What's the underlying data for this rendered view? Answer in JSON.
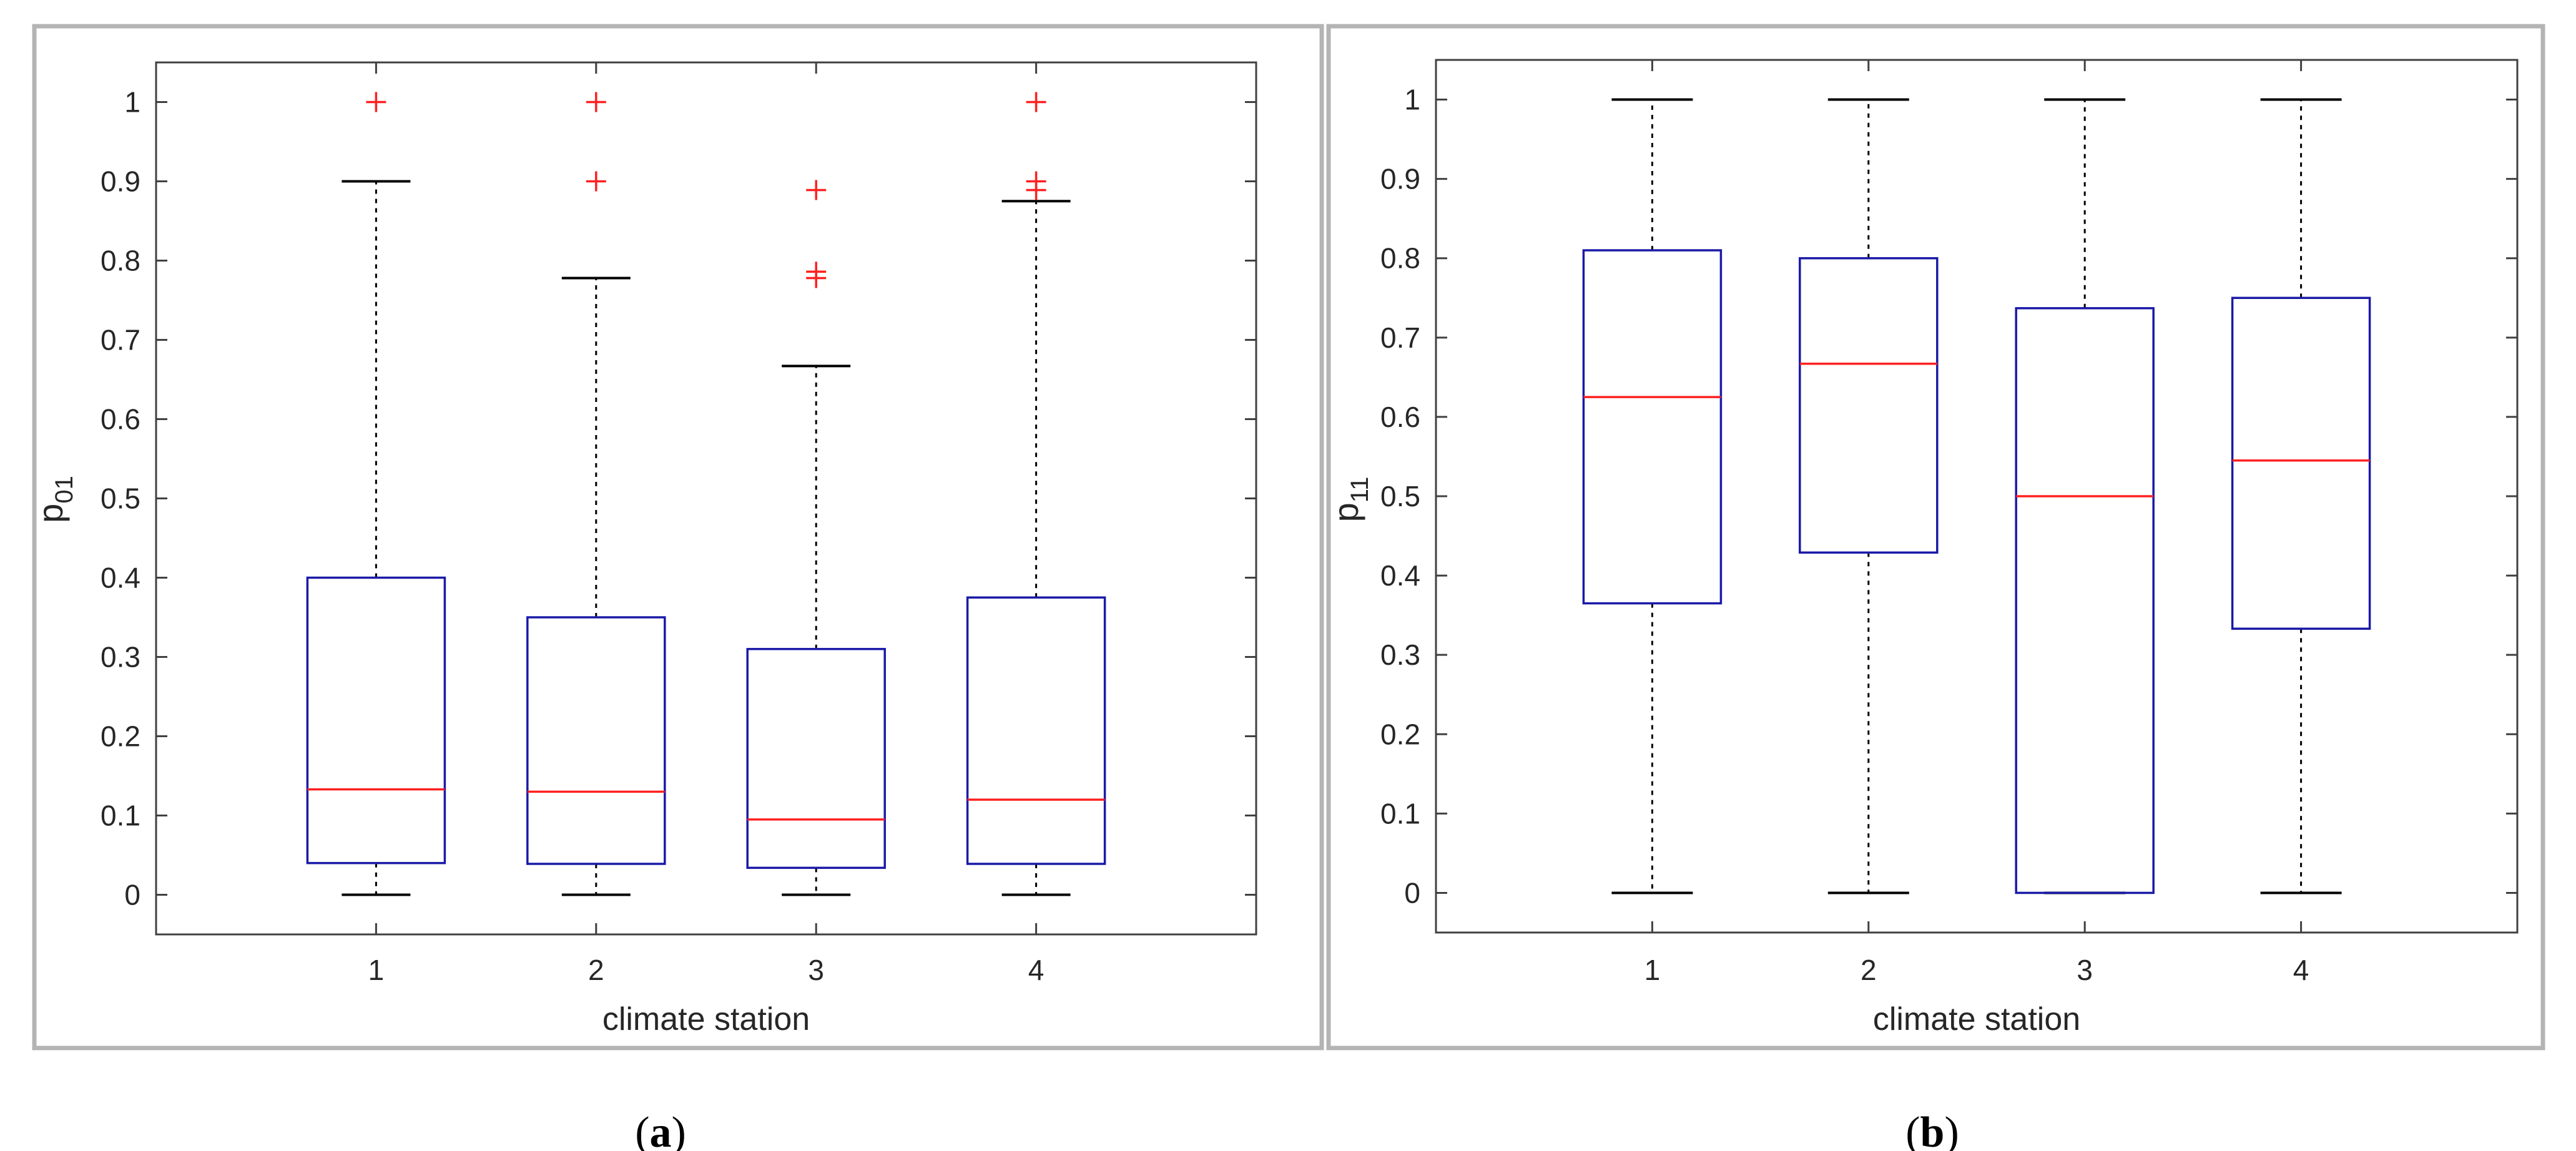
{
  "colors": {
    "frame": "#b4b4b4",
    "axis": "#404040",
    "box": "#1a1aa8",
    "median": "#ff2020",
    "whisker": "#000000",
    "outlier": "#ff2020",
    "text": "#262626"
  },
  "panels": [
    {
      "caption_open": "(",
      "caption_letter": "a",
      "caption_close": ")"
    },
    {
      "caption_open": "(",
      "caption_letter": "b",
      "caption_close": ")"
    }
  ],
  "chart_data": [
    {
      "type": "box",
      "title": "",
      "xlabel": "climate station",
      "ylabel": "p",
      "ylabel_subscript": "01",
      "categories": [
        "1",
        "2",
        "3",
        "4"
      ],
      "ylim": [
        -0.05,
        1.05
      ],
      "yticks": [
        0,
        0.1,
        0.2,
        0.3,
        0.4,
        0.5,
        0.6,
        0.7,
        0.8,
        0.9,
        1
      ],
      "ytick_labels": [
        "0",
        "0.1",
        "0.2",
        "0.3",
        "0.4",
        "0.5",
        "0.6",
        "0.7",
        "0.8",
        "0.9",
        "1"
      ],
      "boxes": [
        {
          "whisker_low": 0,
          "q1": 0.04,
          "median": 0.133,
          "q3": 0.4,
          "whisker_high": 0.9,
          "outliers": [
            1.0
          ]
        },
        {
          "whisker_low": 0,
          "q1": 0.039,
          "median": 0.13,
          "q3": 0.35,
          "whisker_high": 0.778,
          "outliers": [
            0.9,
            1.0
          ]
        },
        {
          "whisker_low": 0,
          "q1": 0.034,
          "median": 0.095,
          "q3": 0.31,
          "whisker_high": 0.667,
          "outliers": [
            0.778,
            0.786,
            0.889
          ]
        },
        {
          "whisker_low": 0,
          "q1": 0.039,
          "median": 0.12,
          "q3": 0.375,
          "whisker_high": 0.875,
          "outliers": [
            0.889,
            0.9,
            1.0
          ]
        }
      ]
    },
    {
      "type": "box",
      "title": "",
      "xlabel": "climate station",
      "ylabel": "p",
      "ylabel_subscript": "11",
      "categories": [
        "1",
        "2",
        "3",
        "4"
      ],
      "ylim": [
        -0.05,
        1.05
      ],
      "yticks": [
        0,
        0.1,
        0.2,
        0.3,
        0.4,
        0.5,
        0.6,
        0.7,
        0.8,
        0.9,
        1
      ],
      "ytick_labels": [
        "0",
        "0.1",
        "0.2",
        "0.3",
        "0.4",
        "0.5",
        "0.6",
        "0.7",
        "0.8",
        "0.9",
        "1"
      ],
      "boxes": [
        {
          "whisker_low": 0,
          "q1": 0.365,
          "median": 0.625,
          "q3": 0.81,
          "whisker_high": 1.0,
          "outliers": []
        },
        {
          "whisker_low": 0,
          "q1": 0.429,
          "median": 0.667,
          "q3": 0.8,
          "whisker_high": 1.0,
          "outliers": []
        },
        {
          "whisker_low": 0,
          "q1": 0.0,
          "median": 0.5,
          "q3": 0.737,
          "whisker_high": 1.0,
          "outliers": []
        },
        {
          "whisker_low": 0,
          "q1": 0.333,
          "median": 0.545,
          "q3": 0.75,
          "whisker_high": 1.0,
          "outliers": []
        }
      ]
    }
  ]
}
